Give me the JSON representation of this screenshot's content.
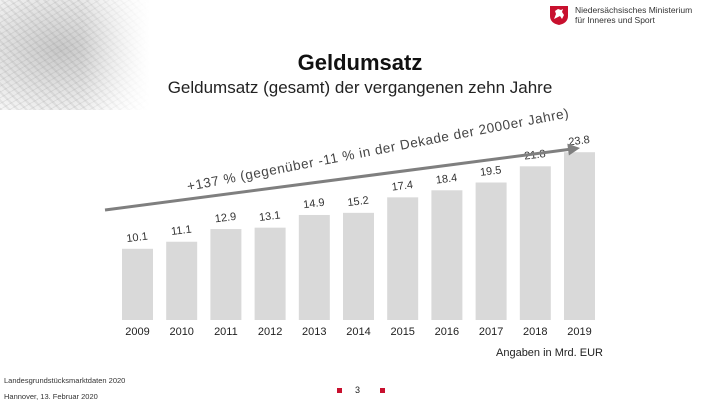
{
  "header": {
    "ministry_line1": "Niedersächsisches Ministerium",
    "ministry_line2": "für Inneres und Sport",
    "title": "Geldumsatz",
    "subtitle": "Geldumsatz (gesamt) der vergangenen zehn Jahre"
  },
  "colors": {
    "bar": "#d9d9d9",
    "trend": "#7f7f7f",
    "accent": "#c8102e"
  },
  "chart_data": {
    "type": "bar",
    "categories": [
      "2009",
      "2010",
      "2011",
      "2012",
      "2013",
      "2014",
      "2015",
      "2016",
      "2017",
      "2018",
      "2019"
    ],
    "values": [
      10.1,
      11.1,
      12.9,
      13.1,
      14.9,
      15.2,
      17.4,
      18.4,
      19.5,
      21.8,
      23.8
    ],
    "value_labels": [
      "10.1",
      "11.1",
      "12.9",
      "13.1",
      "14.9",
      "15.2",
      "17.4",
      "18.4",
      "19.5",
      "21.8",
      "23.8"
    ],
    "ylim": [
      0,
      24
    ],
    "trend_annotation": "+137 % (gegenüber -11 % in der Dekade der 2000er Jahre)",
    "unit_note": "Angaben in Mrd. EUR",
    "grid": false,
    "legend": "none"
  },
  "footer": {
    "source": "Landesgrundstücksmarktdaten 2020",
    "place_date": "Hannover, 13. Februar 2020",
    "page_number": "3"
  }
}
